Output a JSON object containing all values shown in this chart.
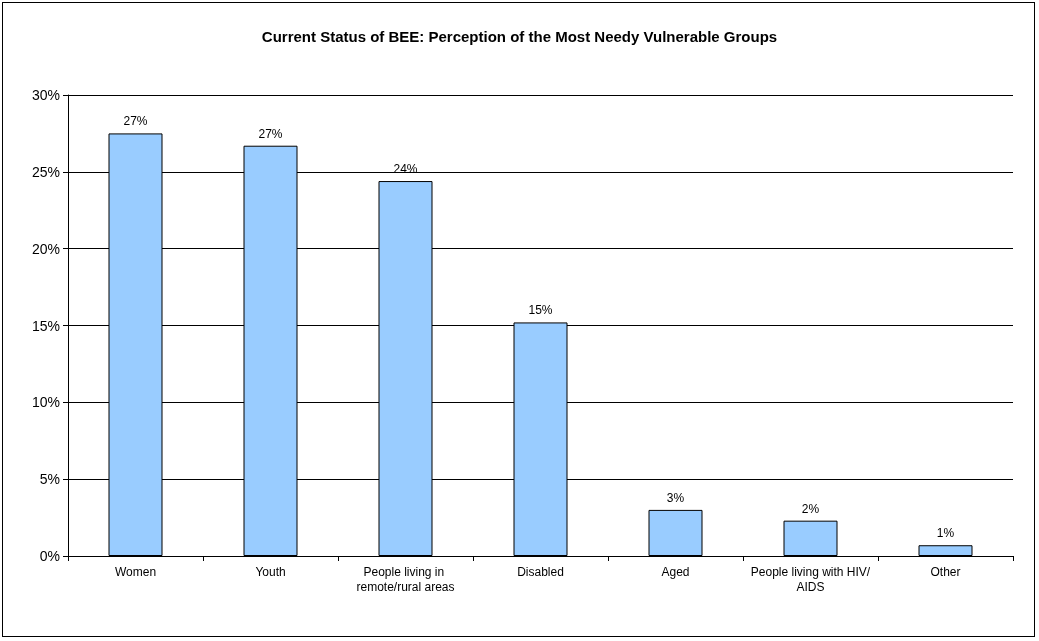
{
  "chart_data": {
    "type": "bar",
    "title": "Current Status of BEE: Perception of the Most Needy Vulnerable Groups",
    "categories": [
      "Women",
      "Youth",
      "People living in remote/rural areas",
      "Disabled",
      "Aged",
      "People living with HIV/AIDS",
      "Other"
    ],
    "values": [
      27.5,
      26.7,
      24.4,
      15.2,
      3.0,
      2.3,
      0.7
    ],
    "value_labels": [
      "27%",
      "27%",
      "24%",
      "15%",
      "3%",
      "2%",
      "1%"
    ],
    "color": "#99ccff",
    "ylim": [
      0,
      30
    ],
    "yticks": [
      {
        "value": 0,
        "label": "0%"
      },
      {
        "value": 5,
        "label": "5%"
      },
      {
        "value": 10,
        "label": "10%"
      },
      {
        "value": 15,
        "label": "15%"
      },
      {
        "value": 20,
        "label": "20%"
      },
      {
        "value": 25,
        "label": "25%"
      },
      {
        "value": 30,
        "label": "30%"
      }
    ],
    "grid": "y"
  }
}
